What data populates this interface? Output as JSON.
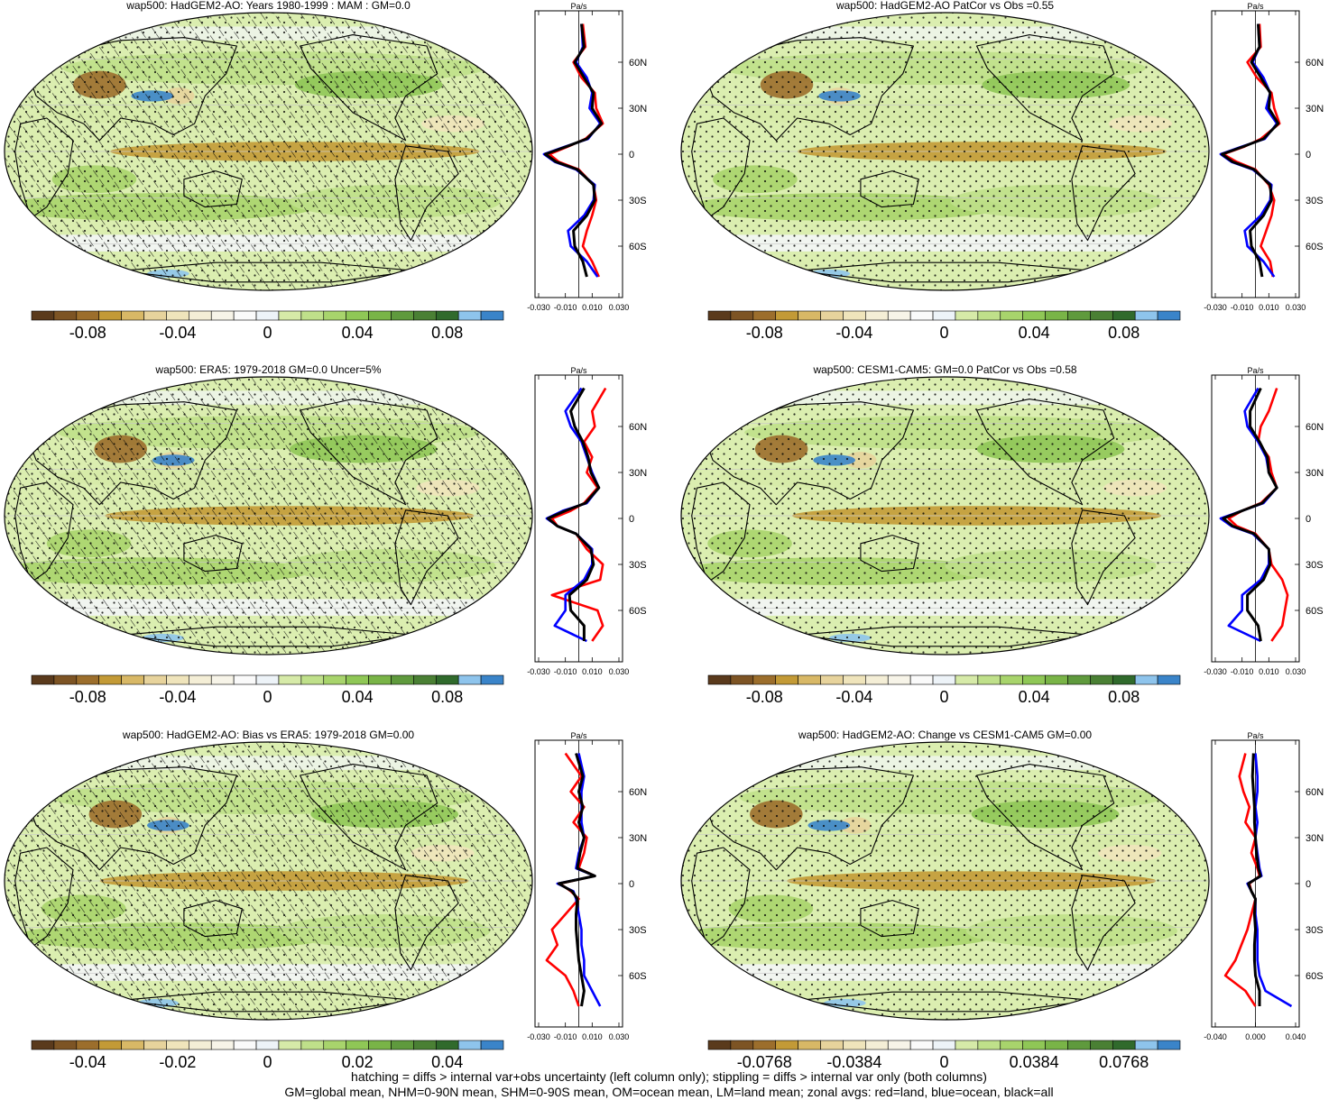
{
  "colorbar_colors": [
    "#5a3a1c",
    "#7d5424",
    "#9c6e2c",
    "#c39a36",
    "#d8b866",
    "#e7d39c",
    "#efe4bb",
    "#f4eed6",
    "#f7f4e8",
    "#fafafa",
    "#edf3f8",
    "#d6eaa8",
    "#bfe08a",
    "#a8d46c",
    "#8fc756",
    "#79b447",
    "#5f9a3d",
    "#4a8034",
    "#306a2c",
    "#8ec4ec",
    "#3a84c9"
  ],
  "line_colors": {
    "land": "#ff0000",
    "ocean": "#0000ff",
    "all": "#000000"
  },
  "lat_labels": [
    "60N",
    "30N",
    "0",
    "30S",
    "60S"
  ],
  "panels": [
    {
      "title": "wap500: HadGEM2-AO: Years 1980-1999 : MAM : GM=0.0",
      "units": "Pa/s",
      "cbar_labels": [
        "-0.08",
        "-0.04",
        "0",
        "0.04",
        "0.08"
      ],
      "zonal_ticks": [
        "-0.030",
        "-0.010",
        "0.010",
        "0.030"
      ],
      "hatched": true
    },
    {
      "title": "wap500: HadGEM2-AO PatCor vs Obs =0.55",
      "units": "Pa/s",
      "cbar_labels": [
        "-0.08",
        "-0.04",
        "0",
        "0.04",
        "0.08"
      ],
      "zonal_ticks": [
        "-0.030",
        "-0.010",
        "0.010",
        "0.030"
      ],
      "hatched": false
    },
    {
      "title": "wap500: ERA5: 1979-2018 GM=0.0 Uncer=5%",
      "units": "Pa/s",
      "cbar_labels": [
        "-0.08",
        "-0.04",
        "0",
        "0.04",
        "0.08"
      ],
      "zonal_ticks": [
        "-0.030",
        "-0.010",
        "0.010",
        "0.030"
      ],
      "hatched": true
    },
    {
      "title": "wap500: CESM1-CAM5: GM=0.0 PatCor vs Obs =0.58",
      "units": "Pa/s",
      "cbar_labels": [
        "-0.08",
        "-0.04",
        "0",
        "0.04",
        "0.08"
      ],
      "zonal_ticks": [
        "-0.030",
        "-0.010",
        "0.010",
        "0.030"
      ],
      "hatched": false
    },
    {
      "title": "wap500: HadGEM2-AO: Bias vs ERA5: 1979-2018 GM=0.00",
      "units": "Pa/s",
      "cbar_labels": [
        "-0.04",
        "-0.02",
        "0",
        "0.02",
        "0.04"
      ],
      "zonal_ticks": [
        "-0.030",
        "-0.010",
        "0.010",
        "0.030"
      ],
      "hatched": true
    },
    {
      "title": "wap500: HadGEM2-AO: Change vs CESM1-CAM5 GM=0.00",
      "units": "Pa/s",
      "cbar_labels": [
        "-0.0768",
        "-0.0384",
        "0",
        "0.0384",
        "0.0768"
      ],
      "zonal_ticks": [
        "-0.040",
        "0.000",
        "0.040"
      ],
      "hatched": false
    }
  ],
  "footer": {
    "line1": "hatching = diffs > internal var+obs uncertainty (left column only); stippling = diffs > internal var only (both columns)",
    "line2": "GM=global mean, NHM=0-90N mean, SHM=0-90S mean, OM=ocean mean, LM=land mean; zonal avgs: red=land, blue=ocean, black=all"
  },
  "chart_data": [
    {
      "type": "heatmap",
      "title": "wap500: HadGEM2-AO: Years 1980-1999 : MAM : GM=0.0",
      "colorbar": [
        -0.08,
        -0.04,
        0,
        0.04,
        0.08
      ],
      "zonal_mean": {
        "y_labels": [
          "60N",
          "30N",
          "0",
          "30S",
          "60S"
        ],
        "x_ticks": [
          -0.03,
          -0.01,
          0.01,
          0.03
        ],
        "units": "Pa/s",
        "lat": [
          85,
          70,
          60,
          50,
          40,
          30,
          20,
          10,
          5,
          0,
          -5,
          -10,
          -20,
          -30,
          -40,
          -50,
          -60,
          -70,
          -80
        ],
        "series": [
          {
            "name": "land",
            "values": [
              0.003,
              0.005,
              -0.004,
              0.002,
              0.012,
              0.013,
              0.018,
              0.005,
              -0.008,
              -0.022,
              -0.015,
              0.0,
              0.011,
              0.013,
              0.01,
              0.006,
              0.003,
              0.01,
              0.015
            ]
          },
          {
            "name": "ocean",
            "values": [
              0.002,
              0.003,
              -0.002,
              0.006,
              0.01,
              0.008,
              0.016,
              0.007,
              -0.01,
              -0.026,
              -0.018,
              -0.002,
              0.012,
              0.011,
              0.004,
              -0.008,
              -0.006,
              0.006,
              0.014
            ]
          },
          {
            "name": "all",
            "values": [
              0.002,
              0.004,
              -0.003,
              0.004,
              0.011,
              0.01,
              0.017,
              0.006,
              -0.009,
              -0.025,
              -0.017,
              -0.001,
              0.011,
              0.012,
              0.006,
              -0.004,
              -0.003,
              0.003,
              0.006
            ]
          }
        ]
      }
    },
    {
      "type": "heatmap",
      "title": "wap500: HadGEM2-AO PatCor vs Obs =0.55",
      "colorbar": [
        -0.08,
        -0.04,
        0,
        0.04,
        0.08
      ],
      "zonal_mean": {
        "y_labels": [
          "60N",
          "30N",
          "0",
          "30S",
          "60S"
        ],
        "x_ticks": [
          -0.03,
          -0.01,
          0.01,
          0.03
        ],
        "units": "Pa/s",
        "lat": [
          85,
          70,
          60,
          50,
          40,
          30,
          20,
          10,
          5,
          0,
          -5,
          -10,
          -20,
          -30,
          -40,
          -50,
          -60,
          -70,
          -80
        ],
        "series": [
          {
            "name": "land",
            "values": [
              0.003,
              0.004,
              -0.006,
              0.001,
              0.012,
              0.014,
              0.018,
              0.004,
              -0.008,
              -0.024,
              -0.014,
              0.0,
              0.01,
              0.014,
              0.012,
              0.008,
              0.004,
              0.011,
              0.013
            ]
          },
          {
            "name": "ocean",
            "values": [
              0.002,
              0.003,
              -0.002,
              0.006,
              0.011,
              0.008,
              0.016,
              0.007,
              -0.01,
              -0.026,
              -0.018,
              -0.002,
              0.012,
              0.011,
              0.004,
              -0.008,
              -0.006,
              0.006,
              0.014
            ]
          },
          {
            "name": "all",
            "values": [
              0.002,
              0.003,
              -0.003,
              0.004,
              0.011,
              0.01,
              0.017,
              0.006,
              -0.009,
              -0.025,
              -0.017,
              -0.001,
              0.011,
              0.012,
              0.006,
              -0.004,
              -0.003,
              0.003,
              0.005
            ]
          }
        ]
      }
    },
    {
      "type": "heatmap",
      "title": "wap500: ERA5: 1979-2018 GM=0.0 Uncer=5%",
      "colorbar": [
        -0.08,
        -0.04,
        0,
        0.04,
        0.08
      ],
      "zonal_mean": {
        "y_labels": [
          "60N",
          "30N",
          "0",
          "30S",
          "60S"
        ],
        "x_ticks": [
          -0.03,
          -0.01,
          0.01,
          0.03
        ],
        "units": "Pa/s",
        "lat": [
          85,
          70,
          60,
          50,
          40,
          30,
          20,
          10,
          5,
          0,
          -5,
          -10,
          -20,
          -30,
          -40,
          -50,
          -60,
          -70,
          -80
        ],
        "series": [
          {
            "name": "land",
            "values": [
              0.02,
              0.01,
              0.012,
              0.004,
              0.01,
              0.006,
              0.014,
              0.004,
              -0.006,
              -0.02,
              -0.016,
              -0.002,
              0.006,
              0.018,
              0.016,
              -0.02,
              0.014,
              0.018,
              0.01
            ]
          },
          {
            "name": "ocean",
            "values": [
              0.002,
              -0.01,
              -0.006,
              0.002,
              0.006,
              0.01,
              0.015,
              0.006,
              -0.012,
              -0.024,
              -0.016,
              -0.002,
              0.01,
              0.01,
              0.004,
              -0.01,
              -0.01,
              -0.018,
              0.006
            ]
          },
          {
            "name": "all",
            "values": [
              0.004,
              -0.006,
              -0.003,
              0.003,
              0.007,
              0.009,
              0.015,
              0.005,
              -0.01,
              -0.023,
              -0.016,
              -0.002,
              0.009,
              0.011,
              0.006,
              -0.007,
              -0.006,
              0.004,
              0.004
            ]
          }
        ]
      }
    },
    {
      "type": "heatmap",
      "title": "wap500: CESM1-CAM5: GM=0.0 PatCor vs Obs =0.58",
      "colorbar": [
        -0.08,
        -0.04,
        0,
        0.04,
        0.08
      ],
      "zonal_mean": {
        "y_labels": [
          "60N",
          "30N",
          "0",
          "30S",
          "60S"
        ],
        "x_ticks": [
          -0.03,
          -0.01,
          0.01,
          0.03
        ],
        "units": "Pa/s",
        "lat": [
          85,
          70,
          60,
          50,
          40,
          30,
          20,
          10,
          5,
          0,
          -5,
          -10,
          -20,
          -30,
          -40,
          -50,
          -60,
          -70,
          -80
        ],
        "series": [
          {
            "name": "land",
            "values": [
              0.016,
              0.01,
              0.004,
              0.002,
              0.01,
              0.012,
              0.016,
              0.004,
              -0.01,
              -0.02,
              -0.014,
              0.0,
              0.01,
              0.012,
              0.02,
              0.024,
              0.022,
              0.02,
              0.012
            ]
          },
          {
            "name": "ocean",
            "values": [
              0.002,
              -0.008,
              -0.006,
              0.002,
              0.008,
              0.01,
              0.016,
              0.006,
              -0.01,
              -0.026,
              -0.018,
              -0.002,
              0.01,
              0.01,
              0.004,
              -0.01,
              -0.01,
              -0.02,
              0.004
            ]
          },
          {
            "name": "all",
            "values": [
              0.004,
              -0.004,
              -0.004,
              0.003,
              0.009,
              0.01,
              0.016,
              0.005,
              -0.01,
              -0.024,
              -0.017,
              -0.001,
              0.01,
              0.011,
              0.006,
              -0.006,
              -0.006,
              0.002,
              0.004
            ]
          }
        ]
      }
    },
    {
      "type": "heatmap",
      "title": "wap500: HadGEM2-AO: Bias vs ERA5: 1979-2018 GM=0.00",
      "colorbar": [
        -0.04,
        -0.02,
        0,
        0.02,
        0.04
      ],
      "zonal_mean": {
        "y_labels": [
          "60N",
          "30N",
          "0",
          "30S",
          "60S"
        ],
        "x_ticks": [
          -0.03,
          -0.01,
          0.01,
          0.03
        ],
        "units": "Pa/s",
        "lat": [
          85,
          70,
          60,
          50,
          40,
          30,
          20,
          10,
          5,
          0,
          -5,
          -10,
          -20,
          -30,
          -40,
          -50,
          -60,
          -70,
          -80
        ],
        "series": [
          {
            "name": "land",
            "values": [
              -0.01,
              0.002,
              -0.006,
              0.004,
              -0.004,
              0.006,
              0.004,
              0.0,
              0.012,
              -0.014,
              -0.006,
              0.0,
              -0.01,
              -0.02,
              -0.016,
              -0.024,
              -0.01,
              -0.004,
              0.0
            ]
          },
          {
            "name": "ocean",
            "values": [
              0.0,
              0.004,
              0.002,
              0.002,
              0.002,
              0.004,
              0.0,
              -0.002,
              0.012,
              -0.016,
              -0.004,
              -0.002,
              0.0,
              0.002,
              0.002,
              0.004,
              0.004,
              0.01,
              0.016
            ]
          },
          {
            "name": "all",
            "values": [
              -0.002,
              0.003,
              0.0,
              0.003,
              0.0,
              0.004,
              0.001,
              -0.001,
              0.012,
              -0.015,
              -0.005,
              -0.001,
              -0.002,
              -0.002,
              -0.001,
              0.0,
              0.002,
              0.004,
              0.002
            ]
          }
        ]
      }
    },
    {
      "type": "heatmap",
      "title": "wap500: HadGEM2-AO: Change vs CESM1-CAM5 GM=0.00",
      "colorbar": [
        -0.0768,
        -0.0384,
        0,
        0.0384,
        0.0768
      ],
      "zonal_mean": {
        "y_labels": [
          "60N",
          "30N",
          "0",
          "30S",
          "60S"
        ],
        "x_ticks": [
          -0.04,
          0.0,
          0.04
        ],
        "units": "Pa/s",
        "lat": [
          85,
          70,
          60,
          50,
          40,
          30,
          20,
          10,
          5,
          0,
          -5,
          -10,
          -20,
          -30,
          -40,
          -50,
          -60,
          -70,
          -80
        ],
        "series": [
          {
            "name": "land",
            "values": [
              -0.01,
              -0.016,
              -0.012,
              -0.006,
              -0.01,
              0.0,
              -0.004,
              0.002,
              0.004,
              -0.006,
              -0.004,
              0.0,
              -0.004,
              -0.008,
              -0.014,
              -0.02,
              -0.03,
              -0.01,
              0.0
            ]
          },
          {
            "name": "ocean",
            "values": [
              0.0,
              0.002,
              0.002,
              0.0,
              0.002,
              0.0,
              0.002,
              0.004,
              0.006,
              -0.008,
              -0.004,
              0.0,
              0.0,
              0.002,
              0.002,
              0.002,
              0.004,
              0.01,
              0.036
            ]
          },
          {
            "name": "all",
            "values": [
              -0.002,
              -0.003,
              -0.002,
              -0.001,
              -0.001,
              0.0,
              0.001,
              0.003,
              0.005,
              -0.007,
              -0.004,
              0.0,
              -0.001,
              0.0,
              -0.001,
              -0.001,
              0.0,
              0.004,
              0.004
            ]
          }
        ]
      }
    }
  ]
}
